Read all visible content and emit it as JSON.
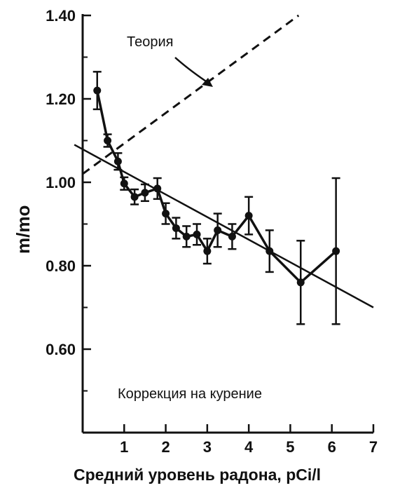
{
  "chart_data": {
    "type": "line",
    "xlabel": "Средний уровень радона, pCi/l",
    "ylabel": "m/mo",
    "xlim": [
      0,
      7
    ],
    "ylim": [
      0.4,
      1.4
    ],
    "x_ticks": [
      "1",
      "2",
      "3",
      "4",
      "5",
      "6",
      "7"
    ],
    "y_ticks": [
      "1.40",
      "1.20",
      "1.00",
      "0.80",
      "0.60"
    ],
    "annotations": {
      "theory_label": "Теория",
      "smoking_note": "Коррекция на курение"
    },
    "theory_line": {
      "style": "dashed",
      "points": [
        [
          0,
          1.02
        ],
        [
          5.2,
          1.4
        ]
      ]
    },
    "fit_line": {
      "style": "solid",
      "points": [
        [
          -0.2,
          1.09
        ],
        [
          7,
          0.7
        ]
      ]
    },
    "series": [
      {
        "marker": "circle",
        "x": [
          0.35,
          0.6,
          0.85,
          1.0,
          1.25,
          1.5,
          1.8,
          2.0,
          2.25,
          2.5,
          2.75,
          3.0,
          3.25,
          3.6,
          4.0,
          4.5,
          5.25,
          6.1
        ],
        "y": [
          1.22,
          1.1,
          1.05,
          0.997,
          0.965,
          0.975,
          0.985,
          0.925,
          0.89,
          0.87,
          0.875,
          0.835,
          0.885,
          0.87,
          0.92,
          0.835,
          0.76,
          0.835
        ],
        "err": [
          0.045,
          0.015,
          0.02,
          0.015,
          0.018,
          0.02,
          0.025,
          0.025,
          0.025,
          0.025,
          0.025,
          0.03,
          0.04,
          0.03,
          0.045,
          0.05,
          0.1,
          0.175
        ]
      }
    ]
  }
}
